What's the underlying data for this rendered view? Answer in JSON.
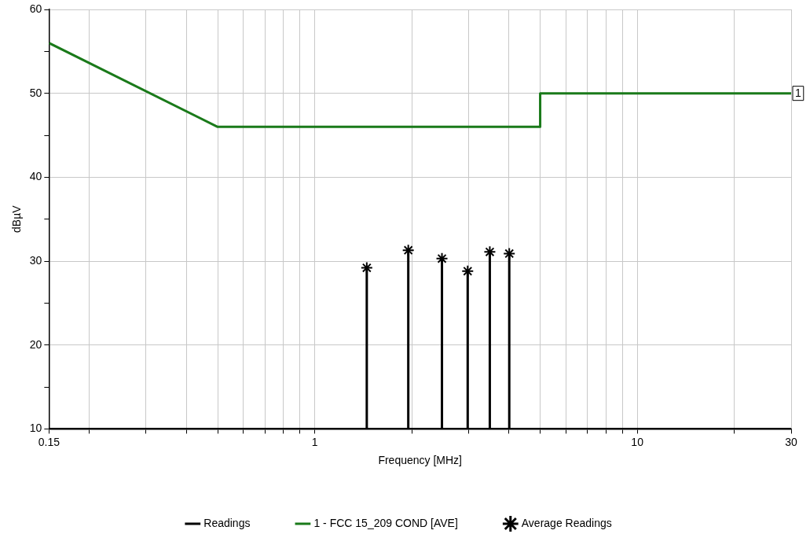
{
  "chart_data": {
    "type": "line",
    "xlabel": "Frequency [MHz]",
    "ylabel": "dBµV",
    "log": "x",
    "xlim": [
      0.15,
      30
    ],
    "ylim": [
      10,
      60
    ],
    "xticks": [
      0.15,
      {
        "value": 0.2,
        "label": null
      },
      {
        "value": 0.3,
        "label": null
      },
      {
        "value": 0.4,
        "label": null
      },
      {
        "value": 0.5,
        "label": null
      },
      {
        "value": 0.6,
        "label": null
      },
      {
        "value": 0.7,
        "label": null
      },
      {
        "value": 0.8,
        "label": null
      },
      {
        "value": 0.9,
        "label": null
      },
      1,
      {
        "value": 2,
        "label": null
      },
      {
        "value": 3,
        "label": null
      },
      {
        "value": 4,
        "label": null
      },
      {
        "value": 5,
        "label": null
      },
      {
        "value": 6,
        "label": null
      },
      {
        "value": 7,
        "label": null
      },
      {
        "value": 8,
        "label": null
      },
      {
        "value": 9,
        "label": null
      },
      10,
      {
        "value": 20,
        "label": null
      },
      30
    ],
    "yticks": [
      10,
      {
        "value": 15,
        "label": null
      },
      20,
      {
        "value": 25,
        "label": null
      },
      30,
      {
        "value": 35,
        "label": null
      },
      40,
      {
        "value": 45,
        "label": null
      },
      50,
      {
        "value": 55,
        "label": null
      },
      60
    ],
    "grid": true,
    "legend": "bottom",
    "marker": "none",
    "line_style": "solid",
    "series": [
      {
        "name": "Readings",
        "color": "#000000",
        "x": [
          0.15,
          1.45,
          1.45,
          1.45,
          1.95,
          1.95,
          1.95,
          2.48,
          2.48,
          2.48,
          2.98,
          2.98,
          2.98,
          3.49,
          3.49,
          3.49,
          4.01,
          4.01,
          4.01,
          30
        ],
        "values": [
          10,
          10,
          29.2,
          10,
          10,
          31.3,
          10,
          10,
          30.3,
          10,
          10,
          28.8,
          10,
          10,
          31.1,
          10,
          10,
          30.9,
          10,
          10
        ]
      },
      {
        "name": "1 - FCC 15_209 COND [AVE]",
        "color": "#1a7a1a",
        "x": [
          0.15,
          0.5,
          5,
          5,
          30
        ],
        "values": [
          56,
          46,
          46,
          50,
          50
        ]
      },
      {
        "name": "Average Readings",
        "type": "scatter",
        "marker": "cross",
        "color": "#000000",
        "x": [
          1.45,
          1.95,
          2.48,
          2.98,
          3.49,
          4.01
        ],
        "values": [
          29.2,
          31.3,
          30.3,
          28.8,
          31.1,
          30.9
        ]
      }
    ],
    "annotations": [
      {
        "text": "1",
        "x": 30,
        "y": 50
      }
    ]
  }
}
